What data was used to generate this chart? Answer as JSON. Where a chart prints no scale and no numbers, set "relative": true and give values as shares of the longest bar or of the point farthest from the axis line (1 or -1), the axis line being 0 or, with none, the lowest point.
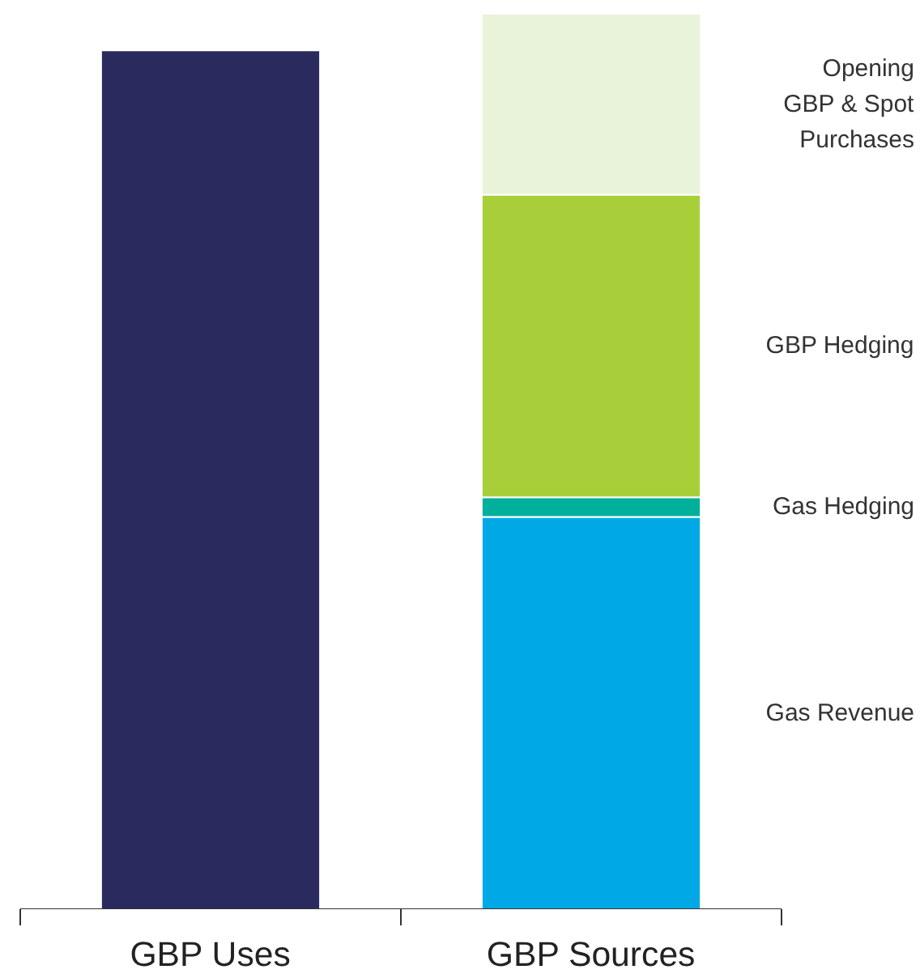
{
  "chart_data": {
    "type": "bar",
    "stacked": true,
    "relative": true,
    "categories": [
      "GBP Uses",
      "GBP Sources"
    ],
    "series": [
      {
        "color": "#2b2a5e",
        "values": [
          0.959,
          null
        ]
      },
      {
        "name": "Gas Revenue",
        "color": "#00a9e6",
        "values": [
          null,
          0.438
        ]
      },
      {
        "name": "Gas Hedging",
        "color": "#00b09b",
        "values": [
          null,
          0.022
        ]
      },
      {
        "name": "GBP Hedging",
        "color": "#a8cf3a",
        "values": [
          null,
          0.338
        ]
      },
      {
        "name": "Opening\nGBP & Spot\nPurchases",
        "color": "#e9f3d9",
        "values": [
          null,
          0.202
        ]
      }
    ]
  }
}
